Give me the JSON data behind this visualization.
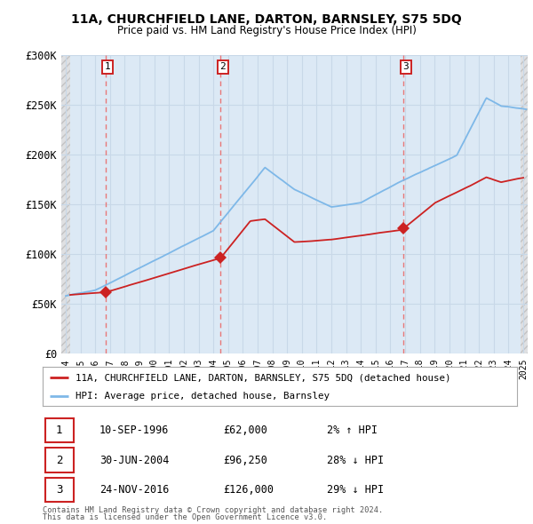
{
  "title": "11A, CHURCHFIELD LANE, DARTON, BARNSLEY, S75 5DQ",
  "subtitle": "Price paid vs. HM Land Registry's House Price Index (HPI)",
  "ylim": [
    0,
    300000
  ],
  "yticks": [
    0,
    50000,
    100000,
    150000,
    200000,
    250000,
    300000
  ],
  "ytick_labels": [
    "£0",
    "£50K",
    "£100K",
    "£150K",
    "£200K",
    "£250K",
    "£300K"
  ],
  "hpi_color": "#7eb8e8",
  "price_color": "#cc2222",
  "marker_color": "#cc2222",
  "dashed_line_color": "#e87878",
  "background_color": "#ffffff",
  "plot_bg_color": "#dce9f5",
  "hatch_bg_color": "#d8d8d8",
  "grid_color": "#c8d8e8",
  "legend_label_price": "11A, CHURCHFIELD LANE, DARTON, BARNSLEY, S75 5DQ (detached house)",
  "legend_label_hpi": "HPI: Average price, detached house, Barnsley",
  "transactions": [
    {
      "num": 1,
      "date": "10-SEP-1996",
      "year": 1996.69,
      "price": 62000,
      "pct": "2%",
      "dir": "↑"
    },
    {
      "num": 2,
      "date": "30-JUN-2004",
      "year": 2004.49,
      "price": 96250,
      "pct": "28%",
      "dir": "↓"
    },
    {
      "num": 3,
      "date": "24-NOV-2016",
      "year": 2016.9,
      "price": 126000,
      "pct": "29%",
      "dir": "↓"
    }
  ],
  "footnote1": "Contains HM Land Registry data © Crown copyright and database right 2024.",
  "footnote2": "This data is licensed under the Open Government Licence v3.0.",
  "xmin": 1994.0,
  "xmax": 2025.0,
  "hatch_left_end": 1994.3,
  "hatch_right_start": 2024.8
}
